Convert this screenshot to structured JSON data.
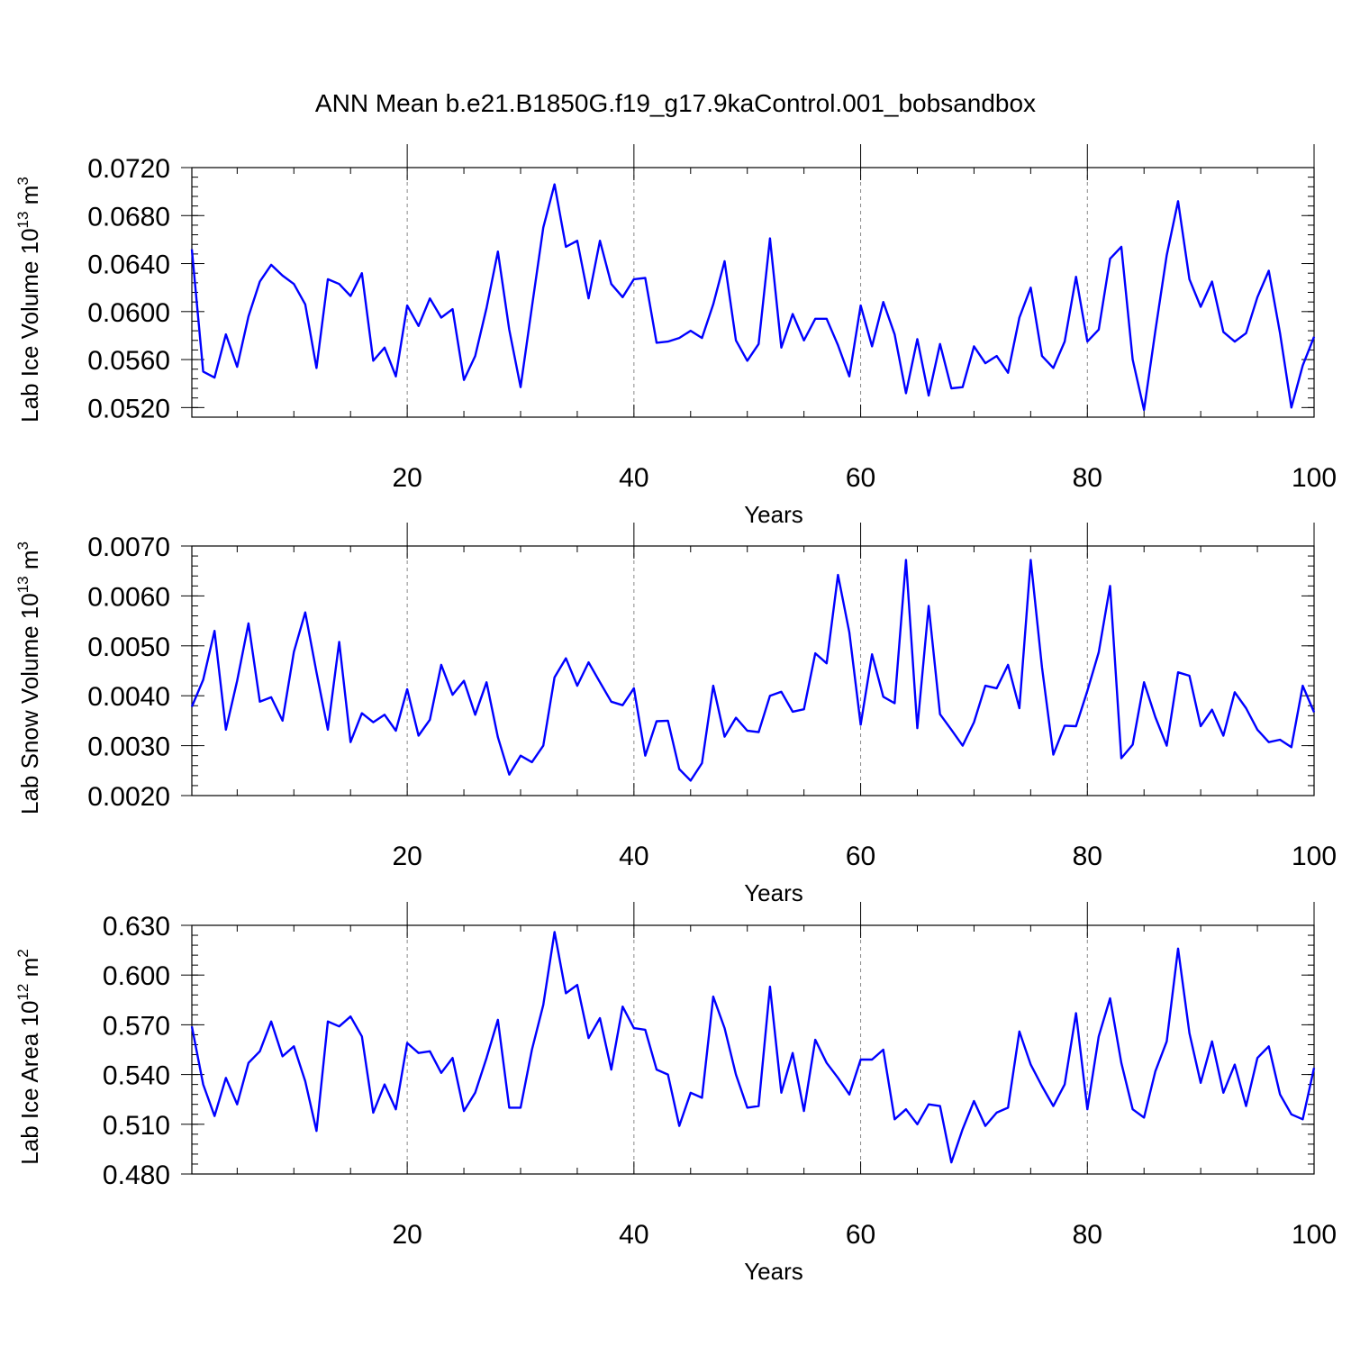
{
  "figure": {
    "title": "ANN Mean b.e21.B1850G.f19_g17.9kaControl.001_bobsandbox",
    "line_color": "#0000ff"
  },
  "chart_data": [
    {
      "type": "line",
      "title": "",
      "xlabel": "Years",
      "ylabel_main": "Lab Ice Volume 10",
      "ylabel_exp": "13",
      "ylabel_unit": " m",
      "ylabel_unit_exp": "3",
      "xlim": [
        1,
        100
      ],
      "ylim": [
        0.0512,
        0.072
      ],
      "yticks": [
        0.052,
        0.056,
        0.06,
        0.064,
        0.068,
        0.072
      ],
      "ytick_labels": [
        "0.0520",
        "0.0560",
        "0.0600",
        "0.0640",
        "0.0680",
        "0.0720"
      ],
      "xticks": [
        20,
        40,
        60,
        80,
        100
      ],
      "xtick_labels": [
        "20",
        "40",
        "60",
        "80",
        "100"
      ],
      "series": [
        {
          "name": "Lab Ice Volume",
          "x_start": 1,
          "values": [
            0.0652,
            0.055,
            0.0545,
            0.0581,
            0.0554,
            0.0596,
            0.0625,
            0.0639,
            0.063,
            0.0623,
            0.0606,
            0.0553,
            0.0627,
            0.0623,
            0.0613,
            0.0632,
            0.0559,
            0.057,
            0.0546,
            0.0605,
            0.0588,
            0.0611,
            0.0595,
            0.0602,
            0.0543,
            0.0563,
            0.0603,
            0.065,
            0.0585,
            0.0537,
            0.0604,
            0.067,
            0.0706,
            0.0654,
            0.0659,
            0.0611,
            0.0659,
            0.0623,
            0.0612,
            0.0627,
            0.0628,
            0.0574,
            0.0575,
            0.0578,
            0.0584,
            0.0578,
            0.0606,
            0.0642,
            0.0576,
            0.0559,
            0.0573,
            0.0661,
            0.057,
            0.0598,
            0.0576,
            0.0594,
            0.0594,
            0.0572,
            0.0546,
            0.0605,
            0.0571,
            0.0608,
            0.0581,
            0.0532,
            0.0577,
            0.053,
            0.0573,
            0.0536,
            0.0537,
            0.0571,
            0.0557,
            0.0563,
            0.0549,
            0.0595,
            0.062,
            0.0563,
            0.0553,
            0.0575,
            0.0629,
            0.0575,
            0.0585,
            0.0644,
            0.0654,
            0.056,
            0.0518,
            0.0584,
            0.0647,
            0.0692,
            0.0627,
            0.0604,
            0.0625,
            0.0583,
            0.0575,
            0.0582,
            0.0612,
            0.0634,
            0.0582,
            0.052,
            0.0555,
            0.0579
          ]
        }
      ]
    },
    {
      "type": "line",
      "title": "",
      "xlabel": "Years",
      "ylabel_main": "Lab Snow Volume 10",
      "ylabel_exp": "13",
      "ylabel_unit": " m",
      "ylabel_unit_exp": "3",
      "xlim": [
        1,
        100
      ],
      "ylim": [
        0.002,
        0.007
      ],
      "yticks": [
        0.002,
        0.003,
        0.004,
        0.005,
        0.006,
        0.007
      ],
      "ytick_labels": [
        "0.0020",
        "0.0030",
        "0.0040",
        "0.0050",
        "0.0060",
        "0.0070"
      ],
      "xticks": [
        20,
        40,
        60,
        80,
        100
      ],
      "xtick_labels": [
        "20",
        "40",
        "60",
        "80",
        "100"
      ],
      "series": [
        {
          "name": "Lab Snow Volume",
          "x_start": 1,
          "values": [
            0.00378,
            0.00432,
            0.0053,
            0.00332,
            0.0043,
            0.00545,
            0.00388,
            0.00397,
            0.0035,
            0.00488,
            0.00567,
            0.00447,
            0.00332,
            0.00508,
            0.00307,
            0.00365,
            0.00347,
            0.00362,
            0.0033,
            0.00413,
            0.0032,
            0.00352,
            0.00462,
            0.00402,
            0.0043,
            0.00362,
            0.00427,
            0.00317,
            0.00242,
            0.0028,
            0.00267,
            0.003,
            0.00437,
            0.00475,
            0.0042,
            0.00467,
            0.00427,
            0.00388,
            0.00381,
            0.00415,
            0.0028,
            0.00349,
            0.0035,
            0.00253,
            0.0023,
            0.00265,
            0.0042,
            0.00318,
            0.00356,
            0.0033,
            0.00327,
            0.004,
            0.00408,
            0.00368,
            0.00373,
            0.00485,
            0.00465,
            0.00642,
            0.00527,
            0.00342,
            0.00483,
            0.00398,
            0.00385,
            0.00672,
            0.00335,
            0.0058,
            0.00363,
            0.00332,
            0.003,
            0.00347,
            0.0042,
            0.00415,
            0.00462,
            0.00375,
            0.00672,
            0.00457,
            0.00282,
            0.0034,
            0.00339,
            0.0041,
            0.00487,
            0.0062,
            0.00275,
            0.00302,
            0.00427,
            0.00357,
            0.003,
            0.00447,
            0.0044,
            0.00339,
            0.00372,
            0.0032,
            0.00407,
            0.00375,
            0.00332,
            0.00307,
            0.00312,
            0.00297,
            0.0042,
            0.00367
          ]
        }
      ]
    },
    {
      "type": "line",
      "title": "",
      "xlabel": "Years",
      "ylabel_main": "Lab Ice Area 10",
      "ylabel_exp": "12",
      "ylabel_unit": " m",
      "ylabel_unit_exp": "2",
      "xlim": [
        1,
        100
      ],
      "ylim": [
        0.48,
        0.63
      ],
      "yticks": [
        0.48,
        0.51,
        0.54,
        0.57,
        0.6,
        0.63
      ],
      "ytick_labels": [
        "0.480",
        "0.510",
        "0.540",
        "0.570",
        "0.600",
        "0.630"
      ],
      "xticks": [
        20,
        40,
        60,
        80,
        100
      ],
      "xtick_labels": [
        "20",
        "40",
        "60",
        "80",
        "100"
      ],
      "series": [
        {
          "name": "Lab Ice Area",
          "x_start": 1,
          "values": [
            0.569,
            0.534,
            0.515,
            0.538,
            0.522,
            0.547,
            0.554,
            0.572,
            0.551,
            0.557,
            0.536,
            0.506,
            0.572,
            0.569,
            0.575,
            0.563,
            0.517,
            0.534,
            0.519,
            0.559,
            0.553,
            0.554,
            0.541,
            0.55,
            0.518,
            0.529,
            0.55,
            0.573,
            0.52,
            0.52,
            0.555,
            0.582,
            0.626,
            0.589,
            0.594,
            0.562,
            0.574,
            0.543,
            0.581,
            0.568,
            0.567,
            0.543,
            0.54,
            0.509,
            0.529,
            0.526,
            0.587,
            0.568,
            0.54,
            0.52,
            0.521,
            0.593,
            0.529,
            0.553,
            0.518,
            0.561,
            0.547,
            0.538,
            0.528,
            0.549,
            0.549,
            0.555,
            0.513,
            0.519,
            0.51,
            0.522,
            0.521,
            0.487,
            0.507,
            0.524,
            0.509,
            0.517,
            0.52,
            0.566,
            0.546,
            0.533,
            0.521,
            0.534,
            0.577,
            0.519,
            0.563,
            0.586,
            0.547,
            0.519,
            0.514,
            0.542,
            0.56,
            0.616,
            0.565,
            0.535,
            0.56,
            0.529,
            0.546,
            0.521,
            0.55,
            0.557,
            0.528,
            0.516,
            0.513,
            0.544
          ]
        }
      ]
    }
  ]
}
